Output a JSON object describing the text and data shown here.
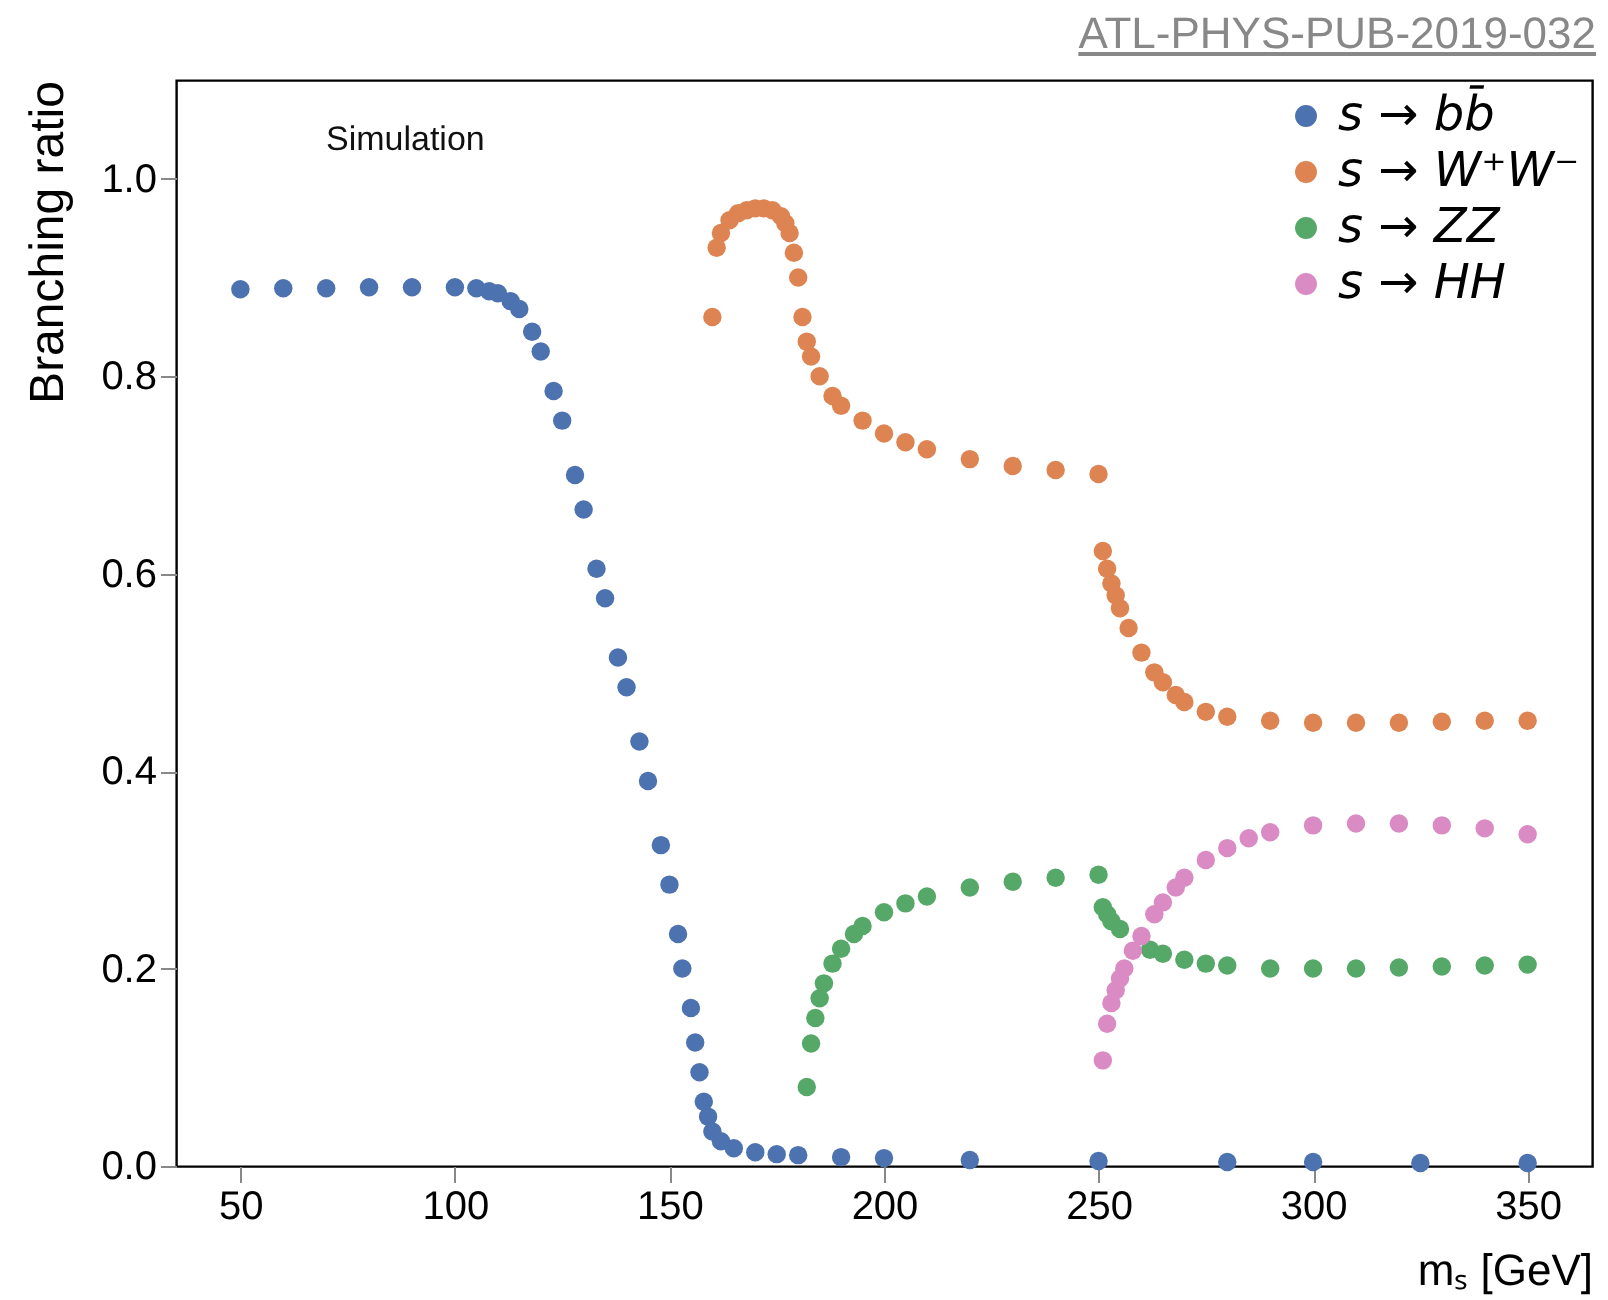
{
  "chart_data": {
    "type": "scatter",
    "xlabel": "mₛ [GeV]",
    "ylabel": "Branching ratio",
    "annotations": [
      "Simulation",
      "ATL-PHYS-PUB-2019-032"
    ],
    "marker": "circle",
    "grid": false,
    "legend": "top right",
    "xlim": [
      35,
      365
    ],
    "ylim": [
      0,
      1.1
    ],
    "xticks": [
      50,
      100,
      150,
      200,
      250,
      300,
      350
    ],
    "yticks": [
      {
        "value": 0,
        "label": "0.0"
      },
      {
        "value": 0.2,
        "label": "0.2"
      },
      {
        "value": 0.4,
        "label": "0.4"
      },
      {
        "value": 0.6,
        "label": "0.6"
      },
      {
        "value": 0.8,
        "label": "0.8"
      },
      {
        "value": 1,
        "label": "1.0"
      }
    ],
    "series": [
      {
        "name": "s → bb̄",
        "color": "#4c72b0",
        "x": [
          50,
          60,
          70,
          80,
          90,
          100,
          105,
          108,
          110,
          113,
          115,
          118,
          120,
          123,
          125,
          128,
          130,
          133,
          135,
          138,
          140,
          143,
          145,
          148,
          150,
          152,
          153,
          155,
          156,
          157,
          158,
          159,
          160,
          162,
          165,
          170,
          175,
          180,
          190,
          200,
          220,
          250,
          280,
          300,
          325,
          350
        ],
        "values": [
          0.888,
          0.889,
          0.889,
          0.89,
          0.89,
          0.89,
          0.889,
          0.886,
          0.884,
          0.876,
          0.868,
          0.845,
          0.825,
          0.785,
          0.755,
          0.7,
          0.665,
          0.605,
          0.575,
          0.515,
          0.485,
          0.43,
          0.39,
          0.325,
          0.285,
          0.235,
          0.2,
          0.16,
          0.125,
          0.095,
          0.065,
          0.05,
          0.035,
          0.025,
          0.018,
          0.014,
          0.012,
          0.011,
          0.009,
          0.008,
          0.006,
          0.005,
          0.004,
          0.004,
          0.003,
          0.003
        ]
      },
      {
        "name": "s → W⁺W⁻",
        "color": "#dd8452",
        "x": [
          160,
          161,
          162,
          164,
          166,
          168,
          170,
          172,
          174,
          176,
          177,
          178,
          179,
          180,
          181,
          182,
          183,
          185,
          188,
          190,
          195,
          200,
          205,
          210,
          220,
          230,
          240,
          250,
          251,
          252,
          253,
          254,
          255,
          257,
          260,
          263,
          265,
          268,
          270,
          275,
          280,
          290,
          300,
          310,
          320,
          330,
          340,
          350
        ],
        "values": [
          0.86,
          0.93,
          0.945,
          0.958,
          0.965,
          0.968,
          0.97,
          0.97,
          0.968,
          0.962,
          0.955,
          0.945,
          0.925,
          0.9,
          0.86,
          0.835,
          0.82,
          0.8,
          0.78,
          0.77,
          0.755,
          0.742,
          0.733,
          0.726,
          0.716,
          0.709,
          0.705,
          0.701,
          0.623,
          0.605,
          0.59,
          0.578,
          0.565,
          0.545,
          0.52,
          0.5,
          0.49,
          0.477,
          0.47,
          0.46,
          0.455,
          0.451,
          0.449,
          0.449,
          0.449,
          0.45,
          0.451,
          0.451
        ]
      },
      {
        "name": "s → ZZ",
        "color": "#55a868",
        "x": [
          182,
          183,
          184,
          185,
          186,
          188,
          190,
          193,
          195,
          200,
          205,
          210,
          220,
          230,
          240,
          250,
          251,
          252,
          253,
          255,
          262,
          265,
          270,
          275,
          280,
          290,
          300,
          310,
          320,
          330,
          340,
          350
        ],
        "values": [
          0.08,
          0.124,
          0.15,
          0.17,
          0.185,
          0.205,
          0.22,
          0.235,
          0.243,
          0.257,
          0.266,
          0.273,
          0.282,
          0.288,
          0.292,
          0.295,
          0.262,
          0.255,
          0.248,
          0.24,
          0.219,
          0.215,
          0.209,
          0.205,
          0.203,
          0.2,
          0.2,
          0.2,
          0.201,
          0.202,
          0.203,
          0.204
        ]
      },
      {
        "name": "s → HH",
        "color": "#da8bc3",
        "x": [
          251,
          252,
          253,
          254,
          255,
          256,
          258,
          260,
          263,
          265,
          268,
          270,
          275,
          280,
          285,
          290,
          300,
          310,
          320,
          330,
          340,
          350
        ],
        "values": [
          0.107,
          0.144,
          0.165,
          0.178,
          0.19,
          0.2,
          0.218,
          0.233,
          0.255,
          0.267,
          0.282,
          0.292,
          0.31,
          0.322,
          0.332,
          0.338,
          0.345,
          0.347,
          0.347,
          0.345,
          0.342,
          0.336
        ]
      }
    ]
  }
}
